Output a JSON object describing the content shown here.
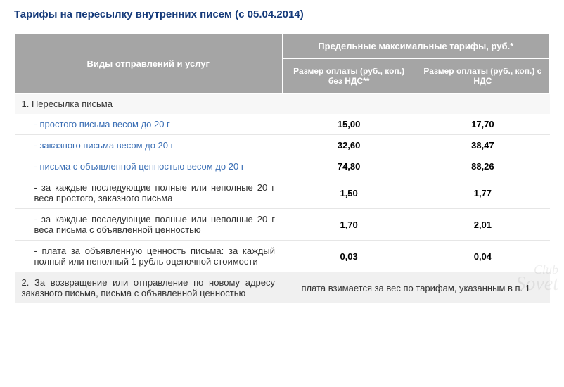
{
  "title": "Тарифы на пересылку внутренних писем (с 05.04.2014)",
  "header": {
    "services": "Виды отправлений и услуг",
    "tariffs_top": "Предельные максимальные тарифы, руб.*",
    "no_vat": "Размер оплаты (руб., коп.) без НДС**",
    "with_vat": "Размер оплаты (руб., коп.) с НДС"
  },
  "section1_title": "1. Пересылка письма",
  "rows": [
    {
      "label": "- простого письма весом до 20 г",
      "no_vat": "15,00",
      "with_vat": "17,70",
      "blue": true
    },
    {
      "label": "- заказного письма весом до 20 г",
      "no_vat": "32,60",
      "with_vat": "38,47",
      "blue": true
    },
    {
      "label": "- письма с объявленной ценностью весом до 20 г",
      "no_vat": "74,80",
      "with_vat": "88,26",
      "blue": true
    },
    {
      "label": "- за каждые последующие полные или неполные 20 г веса простого, заказного письма",
      "no_vat": "1,50",
      "with_vat": "1,77",
      "blue": false
    },
    {
      "label": "- за каждые последующие полные или неполные 20 г веса письма с объявленной ценностью",
      "no_vat": "1,70",
      "with_vat": "2,01",
      "blue": false
    },
    {
      "label": "- плата за объявленную ценность письма: за каждый полный или неполный 1 рубль оценочной стоимости",
      "no_vat": "0,03",
      "with_vat": "0,04",
      "blue": false
    }
  ],
  "footer": {
    "label": "2. За возвращение или отправление по новому адресу заказного письма, письма с объявленной ценностью",
    "note": "плата взимается за вес по тарифам, указанным в п. 1"
  },
  "watermark": {
    "line1": "Club",
    "line2": "Sovet"
  },
  "colors": {
    "title": "#153a7a",
    "header_bg": "#a5a5a5",
    "header_text": "#ffffff",
    "blue_text": "#3b6fb5",
    "section_bg": "#f7f7f7",
    "footer_bg": "#f0f0f0",
    "border": "#e6e6e6"
  }
}
